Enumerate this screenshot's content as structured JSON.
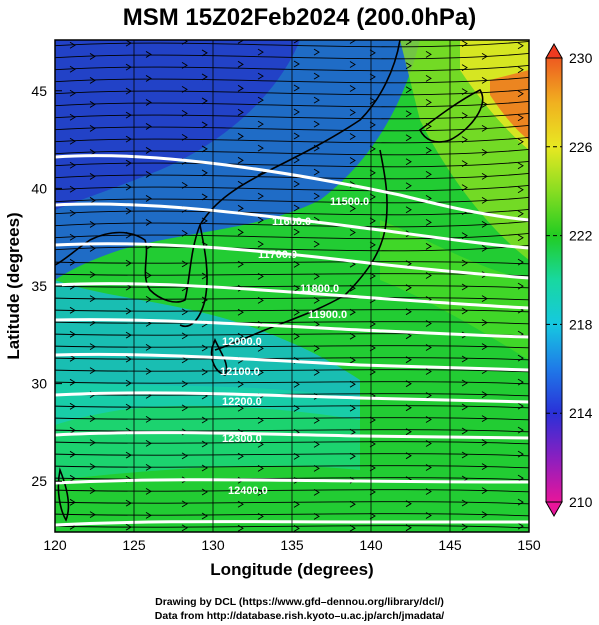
{
  "title": "MSM 15Z02Feb2024 (200.0hPa)",
  "x_axis": {
    "label": "Longitude (degrees)",
    "ticks": [
      120,
      125,
      130,
      135,
      140,
      145,
      150
    ],
    "range": [
      120,
      150
    ]
  },
  "y_axis": {
    "label": "Latitude  (degrees)",
    "ticks": [
      25,
      30,
      35,
      40,
      45
    ],
    "range": [
      22.4,
      47.6
    ]
  },
  "colorbar": {
    "ticks": [
      210,
      214,
      218,
      222,
      226,
      230
    ],
    "range": [
      210,
      230
    ],
    "colors": [
      "#e8159a",
      "#8a1fc0",
      "#2a30d8",
      "#1f7ae8",
      "#16c8e0",
      "#18d8a0",
      "#22cc22",
      "#88dd22",
      "#e8e822",
      "#f0b020",
      "#ee5a20"
    ]
  },
  "contours": {
    "color": "#ffffff",
    "labels": [
      "11500.0",
      "11600.0",
      "11700.0",
      "11800.0",
      "11900.0",
      "12000.0",
      "12100.0",
      "12200.0",
      "12300.0",
      "12400.0"
    ]
  },
  "footer": {
    "line1": "Drawing by DCL (https://www.gfd–dennou.org/library/dcl/)",
    "line2": "Data from http://database.rish.kyoto–u.ac.jp/arch/jmadata/"
  }
}
